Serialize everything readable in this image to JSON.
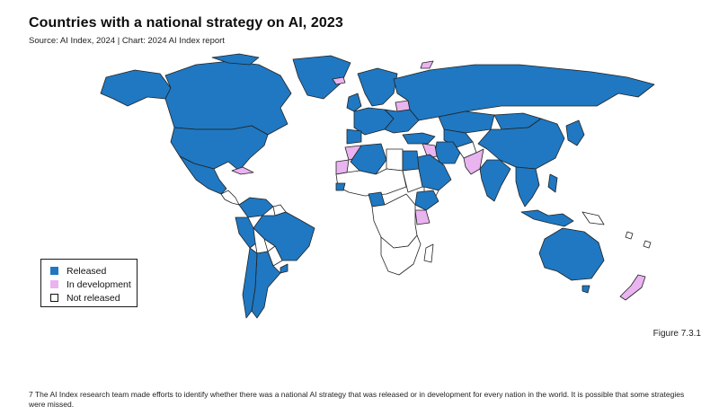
{
  "header": {
    "title": "Countries with a national strategy on AI, 2023",
    "source": "Source: AI Index, 2024 | Chart: 2024 AI Index report"
  },
  "legend": {
    "items": [
      {
        "label": "Released",
        "color": "#1f78c1"
      },
      {
        "label": "In development",
        "color": "#e9b4ef"
      },
      {
        "label": "Not released",
        "color": "#ffffff"
      }
    ]
  },
  "map": {
    "type": "choropleth",
    "categories": [
      "Released",
      "In development",
      "Not released"
    ],
    "in_development_examples": [
      "Pakistan",
      "Morocco",
      "Western Sahara",
      "Kenya",
      "New Zealand",
      "Cuba",
      "Svalbard",
      "Belarus",
      "Iraq"
    ],
    "not_released_examples": [
      "Central Africa",
      "Southern Africa",
      "Libya",
      "Sudan",
      "Bolivia",
      "Paraguay",
      "Papua New Guinea",
      "Afghanistan",
      "Yemen"
    ]
  },
  "figure_label": "Figure 7.3.1",
  "footnote": "7 The AI Index research team made efforts to identify whether there was a national AI strategy that was released or in development for every nation in the world. It is possible that some strategies were missed."
}
